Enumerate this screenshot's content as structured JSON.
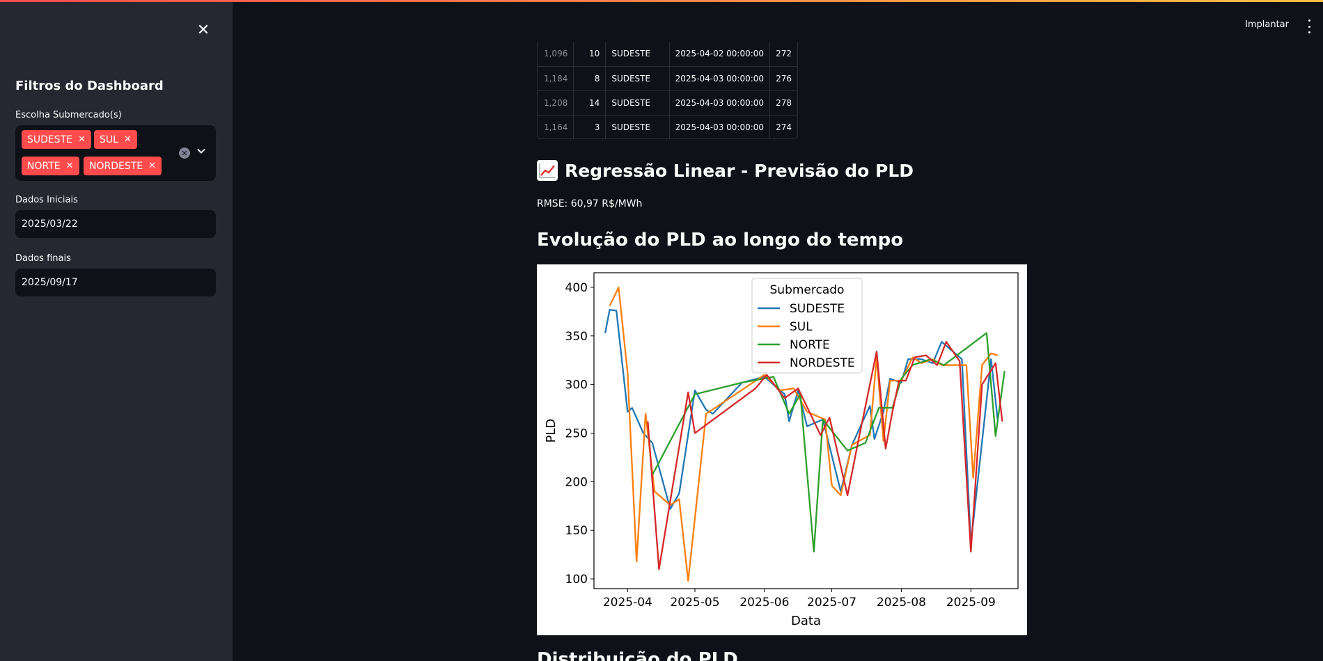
{
  "sidebar": {
    "title": "Filtros do Dashboard",
    "submercado_label": "Escolha Submercado(s)",
    "selected": [
      "SUDESTE",
      "SUL",
      "NORTE",
      "NORDESTE"
    ],
    "start_label": "Dados Iniciais",
    "start_value": "2025/03/22",
    "end_label": "Dados finais",
    "end_value": "2025/09/17",
    "close_icon": "close-icon"
  },
  "header": {
    "deploy_label": "Implantar",
    "menu_icon": "vertical-dots-icon"
  },
  "table": {
    "rows": [
      [
        "1,096",
        "10",
        "SUDESTE",
        "2025-04-02 00:00:00",
        "272"
      ],
      [
        "1,184",
        "8",
        "SUDESTE",
        "2025-04-03 00:00:00",
        "276"
      ],
      [
        "1,208",
        "14",
        "SUDESTE",
        "2025-04-03 00:00:00",
        "278"
      ],
      [
        "1,164",
        "3",
        "SUDESTE",
        "2025-04-03 00:00:00",
        "274"
      ]
    ]
  },
  "main": {
    "section_title": "Regressão Linear - Previsão do PLD",
    "section_icon": "chart-increasing-icon",
    "rmse": "RMSE: 60,97 R$/MWh",
    "chart_title": "Evolução do PLD ao longo do tempo",
    "next_title": "Distribuição do PLD"
  },
  "chart_data": {
    "type": "line",
    "xlabel": "Data",
    "ylabel": "PLD",
    "x_ticks": [
      "2025-04",
      "2025-05",
      "2025-06",
      "2025-07",
      "2025-08",
      "2025-09"
    ],
    "y_ticks": [
      100,
      150,
      200,
      250,
      300,
      350,
      400
    ],
    "xlim": [
      "2025-03-17",
      "2025-09-22"
    ],
    "ylim": [
      90,
      415
    ],
    "legend_title": "Submercado",
    "legend_position": "top-center",
    "grid": false,
    "series": [
      {
        "name": "SUDESTE",
        "color": "#1f77b4",
        "points": [
          [
            "2025-03-22",
            353
          ],
          [
            "2025-03-24",
            377
          ],
          [
            "2025-03-27",
            376
          ],
          [
            "2025-04-01",
            272
          ],
          [
            "2025-04-03",
            276
          ],
          [
            "2025-04-08",
            250
          ],
          [
            "2025-04-12",
            240
          ],
          [
            "2025-04-20",
            172
          ],
          [
            "2025-04-24",
            188
          ],
          [
            "2025-05-01",
            294
          ],
          [
            "2025-05-06",
            274
          ],
          [
            "2025-05-09",
            270
          ],
          [
            "2025-05-22",
            302
          ],
          [
            "2025-06-01",
            308
          ],
          [
            "2025-06-10",
            290
          ],
          [
            "2025-06-12",
            262
          ],
          [
            "2025-06-16",
            294
          ],
          [
            "2025-06-20",
            257
          ],
          [
            "2025-06-27",
            264
          ],
          [
            "2025-07-05",
            190
          ],
          [
            "2025-07-10",
            238
          ],
          [
            "2025-07-18",
            278
          ],
          [
            "2025-07-20",
            244
          ],
          [
            "2025-07-24",
            272
          ],
          [
            "2025-07-27",
            306
          ],
          [
            "2025-08-01",
            302
          ],
          [
            "2025-08-04",
            326
          ],
          [
            "2025-08-10",
            326
          ],
          [
            "2025-08-15",
            322
          ],
          [
            "2025-08-19",
            344
          ],
          [
            "2025-08-28",
            326
          ],
          [
            "2025-09-01",
            136
          ],
          [
            "2025-09-10",
            326
          ],
          [
            "2025-09-13",
            262
          ]
        ]
      },
      {
        "name": "SUL",
        "color": "#ff7f0e",
        "points": [
          [
            "2025-03-24",
            381
          ],
          [
            "2025-03-28",
            400
          ],
          [
            "2025-04-01",
            312
          ],
          [
            "2025-04-05",
            118
          ],
          [
            "2025-04-09",
            270
          ],
          [
            "2025-04-13",
            190
          ],
          [
            "2025-04-20",
            176
          ],
          [
            "2025-04-24",
            182
          ],
          [
            "2025-04-28",
            98
          ],
          [
            "2025-05-06",
            270
          ],
          [
            "2025-05-10",
            276
          ],
          [
            "2025-06-01",
            310
          ],
          [
            "2025-06-08",
            294
          ],
          [
            "2025-06-14",
            296
          ],
          [
            "2025-06-20",
            272
          ],
          [
            "2025-06-28",
            264
          ],
          [
            "2025-07-01",
            196
          ],
          [
            "2025-07-05",
            186
          ],
          [
            "2025-07-10",
            238
          ],
          [
            "2025-07-18",
            248
          ],
          [
            "2025-07-21",
            328
          ],
          [
            "2025-07-24",
            242
          ],
          [
            "2025-07-27",
            304
          ],
          [
            "2025-08-01",
            304
          ],
          [
            "2025-08-06",
            328
          ],
          [
            "2025-08-10",
            322
          ],
          [
            "2025-08-15",
            326
          ],
          [
            "2025-08-19",
            320
          ],
          [
            "2025-08-30",
            320
          ],
          [
            "2025-09-02",
            204
          ],
          [
            "2025-09-06",
            320
          ],
          [
            "2025-09-10",
            332
          ],
          [
            "2025-09-13",
            330
          ]
        ]
      },
      {
        "name": "NORTE",
        "color": "#2ca02c",
        "points": [
          [
            "2025-04-12",
            207
          ],
          [
            "2025-05-01",
            290
          ],
          [
            "2025-05-22",
            302
          ],
          [
            "2025-06-05",
            308
          ],
          [
            "2025-06-12",
            270
          ],
          [
            "2025-06-17",
            290
          ],
          [
            "2025-06-23",
            128
          ],
          [
            "2025-06-27",
            264
          ],
          [
            "2025-07-08",
            232
          ],
          [
            "2025-07-16",
            240
          ],
          [
            "2025-07-22",
            276
          ],
          [
            "2025-07-28",
            276
          ],
          [
            "2025-08-01",
            306
          ],
          [
            "2025-08-06",
            320
          ],
          [
            "2025-08-14",
            326
          ],
          [
            "2025-08-20",
            320
          ],
          [
            "2025-09-08",
            353
          ],
          [
            "2025-09-12",
            247
          ],
          [
            "2025-09-16",
            314
          ]
        ]
      },
      {
        "name": "NORDESTE",
        "color": "#d62728",
        "points": [
          [
            "2025-04-10",
            262
          ],
          [
            "2025-04-15",
            110
          ],
          [
            "2025-04-28",
            292
          ],
          [
            "2025-05-01",
            250
          ],
          [
            "2025-05-28",
            296
          ],
          [
            "2025-06-02",
            310
          ],
          [
            "2025-06-10",
            286
          ],
          [
            "2025-06-16",
            296
          ],
          [
            "2025-06-26",
            248
          ],
          [
            "2025-06-30",
            266
          ],
          [
            "2025-07-08",
            186
          ],
          [
            "2025-07-13",
            244
          ],
          [
            "2025-07-21",
            334
          ],
          [
            "2025-07-25",
            234
          ],
          [
            "2025-07-28",
            272
          ],
          [
            "2025-07-31",
            304
          ],
          [
            "2025-08-03",
            304
          ],
          [
            "2025-08-07",
            328
          ],
          [
            "2025-08-12",
            330
          ],
          [
            "2025-08-17",
            320
          ],
          [
            "2025-08-21",
            344
          ],
          [
            "2025-08-27",
            324
          ],
          [
            "2025-09-01",
            128
          ],
          [
            "2025-09-06",
            300
          ],
          [
            "2025-09-12",
            322
          ],
          [
            "2025-09-15",
            262
          ]
        ]
      }
    ]
  }
}
